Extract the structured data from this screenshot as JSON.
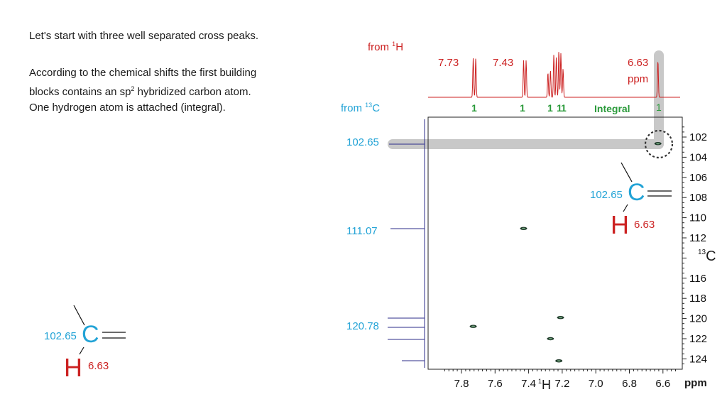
{
  "text": {
    "intro": "Let's start with three well separated cross peaks.",
    "para_line1": "According to the chemical shifts the first building",
    "para_line2_pre": "blocks contains an sp",
    "para_line2_sup": "2",
    "para_line2_post": " hybridized carbon atom.",
    "para_line3": "One hydrogen atom is attached (integral)."
  },
  "labels": {
    "from_h_pre": "from ",
    "from_h_sup": "1",
    "from_h_post": "H",
    "from_c_pre": "from ",
    "from_c_sup": "13",
    "from_c_post": "C",
    "h_shift_1": "7.73",
    "h_shift_2": "7.43",
    "h_shift_3": "6.63",
    "h_shift_unit": "ppm",
    "integral_label": "Integral",
    "integral_values": [
      "1",
      "1",
      "1",
      "1",
      "1",
      "1"
    ],
    "c_shift_1": "102.65",
    "c_shift_2": "111.07",
    "c_shift_3": "120.78"
  },
  "axes": {
    "c_ticks": [
      "102",
      "104",
      "106",
      "108",
      "110",
      "112",
      "116",
      "118",
      "120",
      "122",
      "124"
    ],
    "c_axis_label_sup": "13",
    "c_axis_label": "C",
    "h_ticks": [
      "7.8",
      "7.6",
      "7.4",
      "7.2",
      "7.0",
      "6.8",
      "6.6"
    ],
    "h_axis_label_sup": "1",
    "h_axis_label": "H",
    "h_axis_unit": "ppm"
  },
  "fragment": {
    "carbon": "C",
    "hydrogen": "H",
    "c_shift": "102.65",
    "h_shift": "6.63"
  },
  "colors": {
    "spectrum_red": "#cc2222",
    "cyan": "#22a3d6",
    "green": "#2a9a3a",
    "projection_blue": "#2b2b8a",
    "highlight_gray": "#c8c8c8"
  },
  "chart_data": {
    "type": "scatter",
    "xlabel": "1H",
    "ylabel": "13C",
    "x_unit": "ppm",
    "xlim": [
      7.9,
      6.5
    ],
    "ylim": [
      101,
      125
    ],
    "cross_peaks": [
      {
        "x": 7.73,
        "y": 120.78
      },
      {
        "x": 7.43,
        "y": 111.07
      },
      {
        "x": 7.21,
        "y": 119.9
      },
      {
        "x": 7.27,
        "y": 122.0
      },
      {
        "x": 7.22,
        "y": 124.2
      },
      {
        "x": 6.63,
        "y": 102.65
      }
    ],
    "h_peaks_ppm": [
      7.73,
      7.43,
      7.28,
      7.25,
      7.22,
      7.2,
      6.63
    ],
    "c_peaks_ppm": [
      102.65,
      111.07,
      119.8,
      120.78,
      122.0,
      124.2
    ]
  }
}
